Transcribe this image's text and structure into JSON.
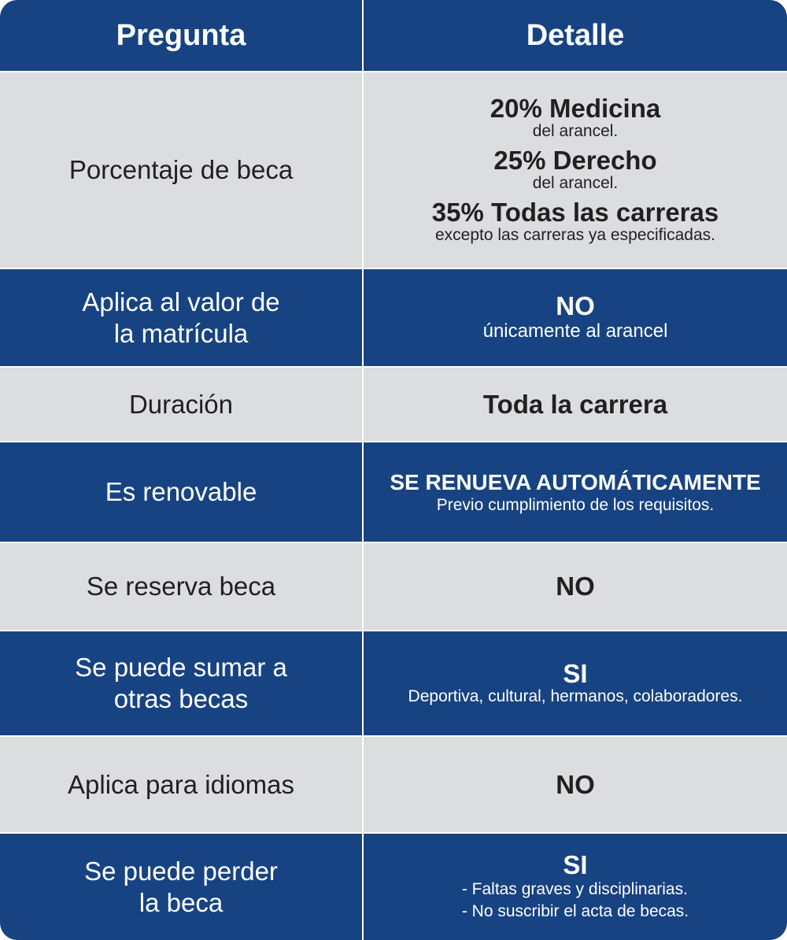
{
  "header": {
    "question": "Pregunta",
    "detail": "Detalle"
  },
  "rows": [
    {
      "question": "Porcentaje de beca",
      "details": [
        {
          "main": "20% Medicina",
          "sub": "del arancel."
        },
        {
          "main": "25% Derecho",
          "sub": "del arancel."
        },
        {
          "main": "35% Todas las carreras",
          "sub": "excepto las carreras ya especificadas."
        }
      ]
    },
    {
      "question": "Aplica al valor de\nla matrícula",
      "main": "NO",
      "sub": "únicamente al arancel"
    },
    {
      "question": "Duración",
      "main": "Toda la carrera"
    },
    {
      "question": "Es renovable",
      "main": "SE RENUEVA AUTOMÁTICAMENTE",
      "sub": "Previo cumplimiento de los requisitos."
    },
    {
      "question": "Se reserva beca",
      "main": "NO"
    },
    {
      "question": "Se puede sumar a\notras becas",
      "main": "SI",
      "sub": "Deportiva, cultural, hermanos, colaboradores."
    },
    {
      "question": "Aplica para idiomas",
      "main": "NO"
    },
    {
      "question": "Se puede perder\nla beca",
      "main": "SI",
      "items": [
        "- Faltas graves y disciplinarias.",
        "- No suscribir el acta de becas."
      ]
    }
  ],
  "colors": {
    "blue": "#174382",
    "gray": "#dcdddf",
    "text_dark": "#231f20",
    "text_light": "#ffffff"
  }
}
